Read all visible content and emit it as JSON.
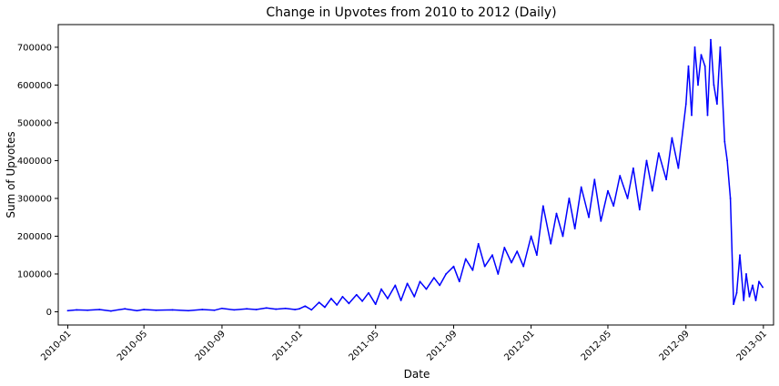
{
  "chart_data": {
    "type": "line",
    "title": "Change in Upvotes from 2010 to 2012 (Daily)",
    "xlabel": "Date",
    "ylabel": "Sum of Upvotes",
    "x_range": [
      "2009-12-17",
      "2013-01-17"
    ],
    "ylim": [
      -35000,
      760000
    ],
    "grid": false,
    "line_color": "#0000ff",
    "x_ticks": [
      {
        "date": "2010-01-01",
        "label": "2010-01"
      },
      {
        "date": "2010-05-01",
        "label": "2010-05"
      },
      {
        "date": "2010-09-01",
        "label": "2010-09"
      },
      {
        "date": "2011-01-01",
        "label": "2011-01"
      },
      {
        "date": "2011-05-01",
        "label": "2011-05"
      },
      {
        "date": "2011-09-01",
        "label": "2011-09"
      },
      {
        "date": "2012-01-01",
        "label": "2012-01"
      },
      {
        "date": "2012-05-01",
        "label": "2012-05"
      },
      {
        "date": "2012-09-01",
        "label": "2012-09"
      },
      {
        "date": "2013-01-01",
        "label": "2013-01"
      }
    ],
    "y_ticks": [
      {
        "value": 0,
        "label": "0"
      },
      {
        "value": 100000,
        "label": "100000"
      },
      {
        "value": 200000,
        "label": "200000"
      },
      {
        "value": 300000,
        "label": "300000"
      },
      {
        "value": 400000,
        "label": "400000"
      },
      {
        "value": 500000,
        "label": "500000"
      },
      {
        "value": 600000,
        "label": "600000"
      },
      {
        "value": 700000,
        "label": "700000"
      }
    ],
    "series": [
      {
        "x": [
          "2010-01-01",
          "2010-01-15",
          "2010-02-01",
          "2010-02-20",
          "2010-03-10",
          "2010-04-01",
          "2010-04-20",
          "2010-05-01",
          "2010-05-20",
          "2010-06-15",
          "2010-07-10",
          "2010-08-01",
          "2010-08-20",
          "2010-09-01",
          "2010-09-20",
          "2010-10-10",
          "2010-10-25",
          "2010-11-10",
          "2010-11-25",
          "2010-12-10",
          "2010-12-25",
          "2011-01-01",
          "2011-01-10",
          "2011-01-20",
          "2011-02-01",
          "2011-02-10",
          "2011-02-20",
          "2011-03-01",
          "2011-03-10",
          "2011-03-20",
          "2011-04-01",
          "2011-04-10",
          "2011-04-20",
          "2011-05-01",
          "2011-05-10",
          "2011-05-20",
          "2011-06-01",
          "2011-06-10",
          "2011-06-20",
          "2011-07-01",
          "2011-07-10",
          "2011-07-20",
          "2011-08-01",
          "2011-08-10",
          "2011-08-20",
          "2011-09-01",
          "2011-09-10",
          "2011-09-20",
          "2011-10-01",
          "2011-10-10",
          "2011-10-20",
          "2011-11-01",
          "2011-11-10",
          "2011-11-20",
          "2011-12-01",
          "2011-12-10",
          "2011-12-20",
          "2012-01-01",
          "2012-01-10",
          "2012-01-20",
          "2012-02-01",
          "2012-02-10",
          "2012-02-20",
          "2012-03-01",
          "2012-03-10",
          "2012-03-20",
          "2012-04-01",
          "2012-04-10",
          "2012-04-20",
          "2012-05-01",
          "2012-05-10",
          "2012-05-20",
          "2012-06-01",
          "2012-06-10",
          "2012-06-20",
          "2012-07-01",
          "2012-07-10",
          "2012-07-20",
          "2012-08-01",
          "2012-08-10",
          "2012-08-20",
          "2012-09-01",
          "2012-09-05",
          "2012-09-10",
          "2012-09-15",
          "2012-09-20",
          "2012-09-25",
          "2012-10-01",
          "2012-10-05",
          "2012-10-10",
          "2012-10-15",
          "2012-10-20",
          "2012-10-25",
          "2012-11-01",
          "2012-11-05",
          "2012-11-10",
          "2012-11-15",
          "2012-11-20",
          "2012-11-25",
          "2012-12-01",
          "2012-12-05",
          "2012-12-10",
          "2012-12-15",
          "2012-12-20",
          "2012-12-25",
          "2012-12-31"
        ],
        "values": [
          3000,
          5000,
          4000,
          6000,
          2000,
          8000,
          3000,
          6000,
          4000,
          5000,
          3000,
          6000,
          4000,
          9000,
          5000,
          8000,
          6000,
          10000,
          7000,
          9000,
          6000,
          8000,
          15000,
          5000,
          25000,
          12000,
          35000,
          18000,
          40000,
          22000,
          45000,
          28000,
          50000,
          20000,
          60000,
          35000,
          70000,
          30000,
          75000,
          40000,
          80000,
          60000,
          90000,
          70000,
          100000,
          120000,
          80000,
          140000,
          110000,
          180000,
          120000,
          150000,
          100000,
          170000,
          130000,
          160000,
          120000,
          200000,
          150000,
          280000,
          180000,
          260000,
          200000,
          300000,
          220000,
          330000,
          250000,
          350000,
          240000,
          320000,
          280000,
          360000,
          300000,
          380000,
          270000,
          400000,
          320000,
          420000,
          350000,
          460000,
          380000,
          550000,
          650000,
          520000,
          700000,
          600000,
          680000,
          650000,
          520000,
          720000,
          600000,
          550000,
          700000,
          450000,
          400000,
          300000,
          20000,
          50000,
          150000,
          30000,
          100000,
          40000,
          70000,
          30000,
          80000,
          65000
        ]
      }
    ]
  }
}
